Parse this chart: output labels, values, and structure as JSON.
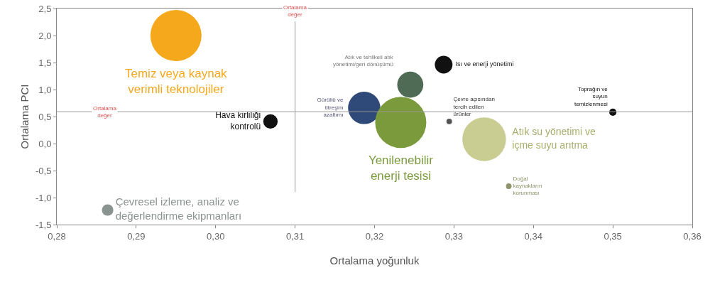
{
  "chart_data": {
    "type": "bubble",
    "xlabel": "Ortalama yoğunluk",
    "ylabel": "Ortalama PCI",
    "xlim": [
      0.28,
      0.36
    ],
    "xticks": [
      {
        "value": 0.28,
        "label": "0,28"
      },
      {
        "value": 0.29,
        "label": "0,29"
      },
      {
        "value": 0.3,
        "label": "0,30"
      },
      {
        "value": 0.31,
        "label": "0,31"
      },
      {
        "value": 0.32,
        "label": "0,32"
      },
      {
        "value": 0.33,
        "label": "0,33"
      },
      {
        "value": 0.34,
        "label": "0,34"
      },
      {
        "value": 0.35,
        "label": "0,35"
      },
      {
        "value": 0.36,
        "label": "0,36"
      }
    ],
    "ylim": [
      -1.5,
      2.5
    ],
    "yticks": [
      {
        "value": -1.5,
        "label": "-1,5"
      },
      {
        "value": -1,
        "label": "-1,0"
      },
      {
        "value": -0.5,
        "label": "-0,5"
      },
      {
        "value": 0,
        "label": "0,0"
      },
      {
        "value": 0.5,
        "label": "0,5"
      },
      {
        "value": 1,
        "label": "1,0"
      },
      {
        "value": 1.5,
        "label": "1,5"
      },
      {
        "value": 2,
        "label": "2,0"
      },
      {
        "value": 2.5,
        "label": "2,5"
      }
    ],
    "grid": false,
    "legend": false,
    "series": [
      {
        "name": "Temiz veya kaynak verimli teknolojiler",
        "color": "#f5a81c",
        "x": [
          0.295
        ],
        "values": [
          2.0
        ],
        "sizes": [
          1
        ]
      },
      {
        "name": "Hava kirliliği kontrolü",
        "color": "#111111",
        "x": [
          0.3069
        ],
        "values": [
          0.41
        ],
        "sizes": [
          0.08
        ]
      },
      {
        "name": "Çevresel izleme, analiz ve değerlendirme ekipmanları",
        "color": "#8a9390",
        "x": [
          0.2864
        ],
        "values": [
          -1.23
        ],
        "sizes": [
          0.05
        ]
      },
      {
        "name": "Atık ve tehlikeli atık yönetimi/geri dönüşümü",
        "color": "#4f6a55",
        "x": [
          0.3245
        ],
        "values": [
          1.09
        ],
        "sizes": [
          0.26
        ]
      },
      {
        "name": "Isı ve enerji yönetimi",
        "color": "#111111",
        "x": [
          0.3287
        ],
        "values": [
          1.46
        ],
        "sizes": [
          0.12
        ]
      },
      {
        "name": "Gürültü ve titreşim azaltımı",
        "color": "#2f4a78",
        "x": [
          0.3187
        ],
        "values": [
          0.66
        ],
        "sizes": [
          0.4
        ]
      },
      {
        "name": "Yenilenebilir enerji tesisi",
        "color": "#7a9a3c",
        "x": [
          0.3233
        ],
        "values": [
          0.39
        ],
        "sizes": [
          1
        ]
      },
      {
        "name": "Çevre açısından tercih edilen ürünler",
        "color": "#555555",
        "x": [
          0.3294
        ],
        "values": [
          0.41
        ],
        "sizes": [
          0.012
        ]
      },
      {
        "name": "Atık su yönetimi ve içme suyu arıtma",
        "color": "#c9cd92",
        "x": [
          0.3338
        ],
        "values": [
          0.08
        ],
        "sizes": [
          0.73
        ]
      },
      {
        "name": "Doğal kaynakların korunması",
        "color": "#8f946a",
        "x": [
          0.3369
        ],
        "values": [
          -0.79
        ],
        "sizes": [
          0.012
        ]
      },
      {
        "name": "Toprağın ve suyun temizlenmesi",
        "color": "#111111",
        "x": [
          0.35
        ],
        "values": [
          0.58
        ],
        "sizes": [
          0.02
        ]
      }
    ],
    "ref_lines": [
      {
        "axis": "x",
        "value": 0.31,
        "label": "Ortalama değer",
        "color": "#999999"
      },
      {
        "axis": "y",
        "value": 0.59,
        "label": "Ortalama değer",
        "color": "#999999"
      }
    ]
  }
}
